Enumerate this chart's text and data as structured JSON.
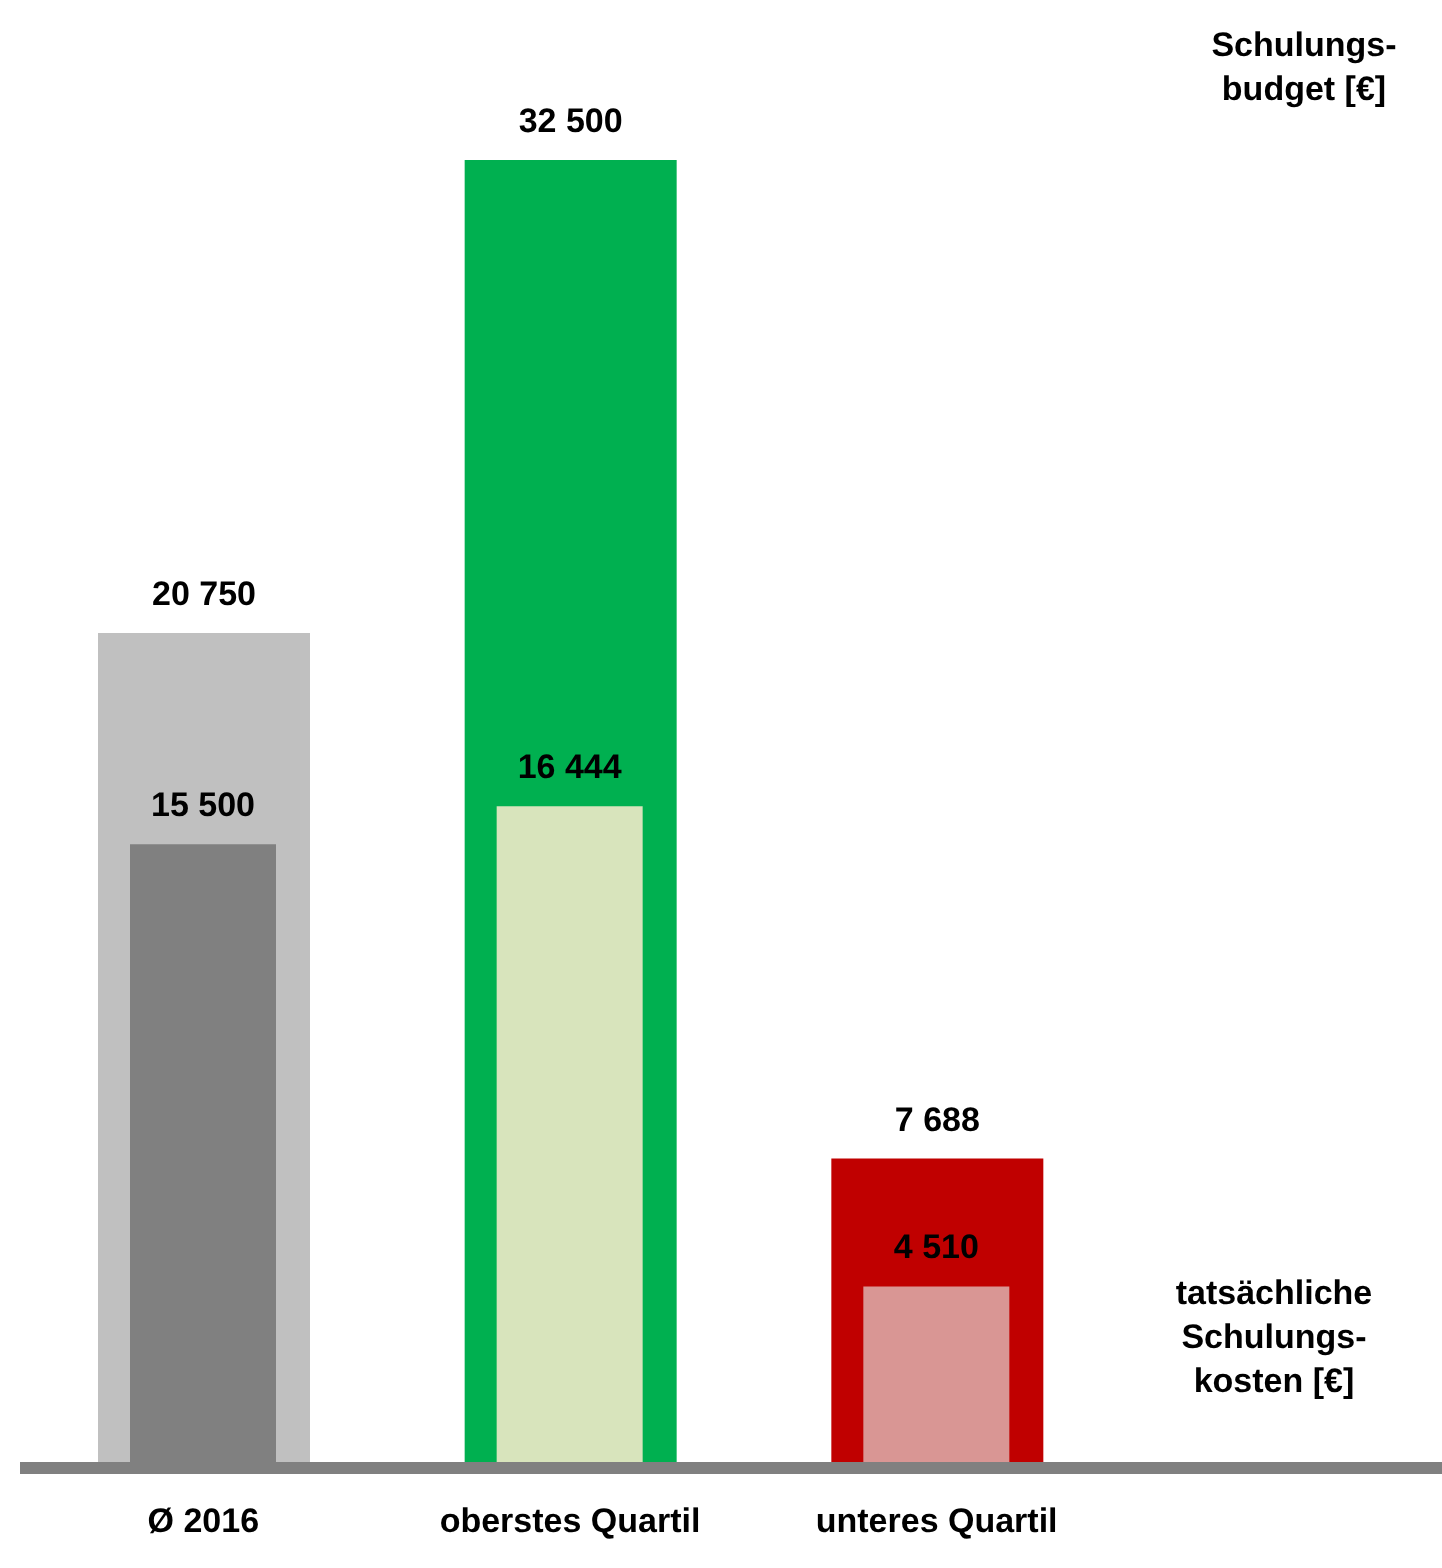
{
  "chart_data": {
    "type": "bar",
    "categories": [
      "Ø 2016",
      "oberstes Quartil",
      "unteres Quartil"
    ],
    "series": [
      {
        "name": "Schulungs-budget [€]",
        "colors": [
          "#c0c0c0",
          "#00b050",
          "#c00000"
        ],
        "values": [
          20750,
          32500,
          7688
        ],
        "value_labels": [
          "20 750",
          "32 500",
          "7 688"
        ]
      },
      {
        "name": "tatsächliche Schulungs-kosten [€]",
        "colors": [
          "#808080",
          "#d8e4bc",
          "#d99694"
        ],
        "values": [
          15500,
          16444,
          4510
        ],
        "value_labels": [
          "15 500",
          "16 444",
          "4 510"
        ]
      }
    ]
  }
}
